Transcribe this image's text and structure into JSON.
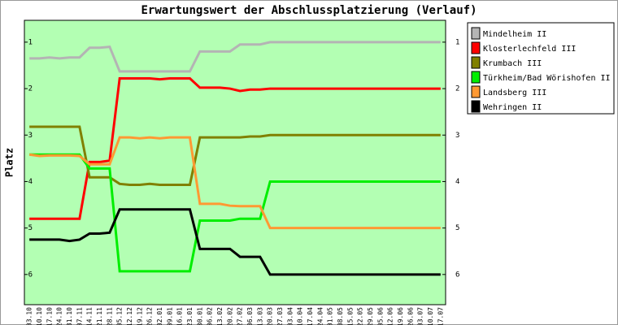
{
  "chart_data": {
    "type": "line",
    "title": "Erwartungswert der Abschlussplatzierung (Verlauf)",
    "y_label": "Platz",
    "categories": [
      "03.10",
      "10.10",
      "17.10",
      "24.10",
      "31.10",
      "07.11",
      "14.11",
      "21.11",
      "28.11",
      "05.12",
      "12.12",
      "19.12",
      "26.12",
      "02.01",
      "09.01",
      "16.01",
      "23.01",
      "30.01",
      "06.02",
      "13.02",
      "20.02",
      "27.02",
      "06.03",
      "13.03",
      "20.03",
      "27.03",
      "03.04",
      "10.04",
      "17.04",
      "24.04",
      "01.05",
      "08.05",
      "15.05",
      "22.05",
      "29.05",
      "05.06",
      "12.06",
      "19.06",
      "26.06",
      "03.07",
      "10.07",
      "17.07"
    ],
    "ylim": [
      6.65,
      0.53
    ],
    "yticks": [
      1,
      2,
      3,
      4,
      5,
      6
    ],
    "grid": false,
    "legend": "right",
    "series": [
      {
        "name": "Mindelheim II",
        "color": "#b4b4b4",
        "values": [
          1.35,
          1.35,
          1.33,
          1.35,
          1.33,
          1.33,
          1.12,
          1.12,
          1.1,
          1.63,
          1.63,
          1.63,
          1.63,
          1.63,
          1.63,
          1.63,
          1.63,
          1.2,
          1.2,
          1.2,
          1.2,
          1.05,
          1.05,
          1.05,
          1,
          1,
          1,
          1,
          1,
          1,
          1,
          1,
          1,
          1,
          1,
          1,
          1,
          1,
          1,
          1,
          1,
          1
        ]
      },
      {
        "name": "Klosterlechfeld III",
        "color": "#ff0000",
        "values": [
          4.8,
          4.8,
          4.8,
          4.8,
          4.8,
          4.8,
          3.58,
          3.58,
          3.55,
          1.78,
          1.78,
          1.78,
          1.78,
          1.8,
          1.78,
          1.78,
          1.78,
          1.98,
          1.98,
          1.98,
          2,
          2.05,
          2.02,
          2.02,
          2,
          2,
          2,
          2,
          2,
          2,
          2,
          2,
          2,
          2,
          2,
          2,
          2,
          2,
          2,
          2,
          2,
          2
        ]
      },
      {
        "name": "Krumbach III",
        "color": "#808000",
        "values": [
          2.82,
          2.82,
          2.82,
          2.82,
          2.82,
          2.82,
          3.91,
          3.91,
          3.91,
          4.05,
          4.07,
          4.07,
          4.05,
          4.07,
          4.07,
          4.07,
          4.07,
          3.05,
          3.05,
          3.05,
          3.05,
          3.05,
          3.03,
          3.03,
          3,
          3,
          3,
          3,
          3,
          3,
          3,
          3,
          3,
          3,
          3,
          3,
          3,
          3,
          3,
          3,
          3,
          3
        ]
      },
      {
        "name": "Türkheim/Bad Wörishofen II",
        "color": "#00ee00",
        "values": [
          3.42,
          3.42,
          3.42,
          3.42,
          3.42,
          3.42,
          3.72,
          3.72,
          3.72,
          5.93,
          5.93,
          5.93,
          5.93,
          5.93,
          5.93,
          5.93,
          5.93,
          4.84,
          4.84,
          4.84,
          4.84,
          4.8,
          4.8,
          4.8,
          4,
          4,
          4,
          4,
          4,
          4,
          4,
          4,
          4,
          4,
          4,
          4,
          4,
          4,
          4,
          4,
          4,
          4
        ]
      },
      {
        "name": "Landsberg III",
        "color": "#ff9933",
        "values": [
          3.42,
          3.45,
          3.44,
          3.44,
          3.44,
          3.45,
          3.63,
          3.63,
          3.63,
          3.05,
          3.05,
          3.07,
          3.05,
          3.07,
          3.05,
          3.05,
          3.05,
          4.48,
          4.48,
          4.48,
          4.52,
          4.53,
          4.53,
          4.53,
          5,
          5,
          5,
          5,
          5,
          5,
          5,
          5,
          5,
          5,
          5,
          5,
          5,
          5,
          5,
          5,
          5,
          5
        ]
      },
      {
        "name": "Wehringen II",
        "color": "#000000",
        "values": [
          5.25,
          5.25,
          5.25,
          5.25,
          5.28,
          5.25,
          5.12,
          5.12,
          5.1,
          4.6,
          4.6,
          4.6,
          4.6,
          4.6,
          4.6,
          4.6,
          4.6,
          5.45,
          5.45,
          5.45,
          5.45,
          5.62,
          5.62,
          5.62,
          6,
          6,
          6,
          6,
          6,
          6,
          6,
          6,
          6,
          6,
          6,
          6,
          6,
          6,
          6,
          6,
          6,
          6
        ]
      }
    ]
  }
}
